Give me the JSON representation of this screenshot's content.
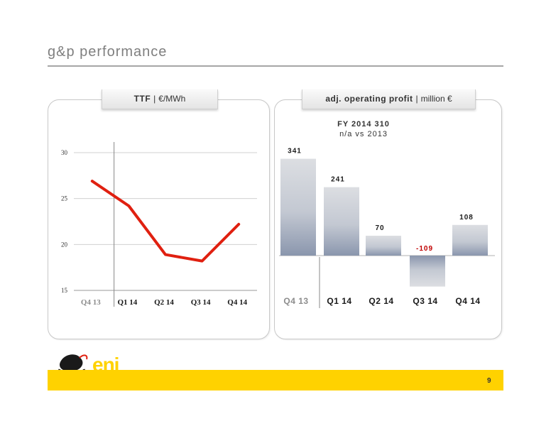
{
  "title": "g&p performance",
  "left_tab": {
    "bold": "TTF",
    "sep": "|",
    "unit": "€/MWh"
  },
  "right_tab": {
    "bold": "adj. operating profit",
    "sep": "|",
    "unit": "million €"
  },
  "fy_line1": "FY 2014   310",
  "fy_line2": "n/a vs 2013",
  "page_number": "9",
  "logo_text": "eni",
  "colors": {
    "accent_yellow": "#ffd200",
    "line_red": "#e02010",
    "negative_label": "#c00000"
  },
  "chart_data": [
    {
      "type": "line",
      "categories": [
        "Q4 13",
        "Q1 14",
        "Q2 14",
        "Q3 14",
        "Q4 14"
      ],
      "series": [
        {
          "values": [
            26.9,
            24.2,
            18.9,
            18.2,
            22.2
          ]
        }
      ],
      "y_ticks": [
        "15",
        "20",
        "25",
        "30"
      ],
      "ylim": [
        15,
        30
      ],
      "grid": true
    },
    {
      "type": "bar",
      "categories": [
        "Q4 13",
        "Q1 14",
        "Q2 14",
        "Q3 14",
        "Q4 14"
      ],
      "values": [
        341,
        241,
        70,
        -109,
        108
      ],
      "value_labels": [
        "341",
        "241",
        "70",
        "-109",
        "108"
      ]
    }
  ]
}
